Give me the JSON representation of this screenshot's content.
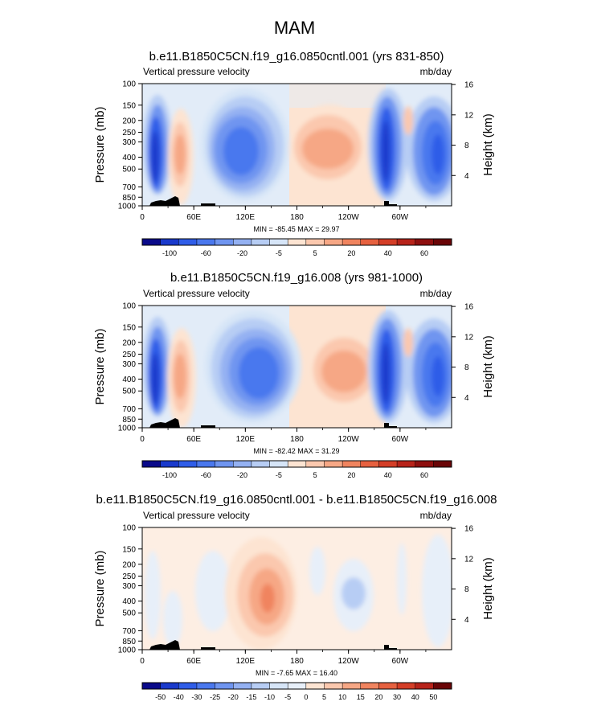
{
  "title": "MAM",
  "panels": [
    {
      "subtitle": "b.e11.B1850C5CN.f19_g16.0850cntl.001 (yrs 831-850)",
      "left_label": "Vertical pressure velocity",
      "right_label": "mb/day",
      "minmax": "MIN = -85.45  MAX = 29.97"
    },
    {
      "subtitle": "b.e11.B1850C5CN.f19_g16.008 (yrs 981-1000)",
      "left_label": "Vertical pressure velocity",
      "right_label": "mb/day",
      "minmax": "MIN = -82.42  MAX = 31.29"
    },
    {
      "subtitle": "b.e11.B1850C5CN.f19_g16.0850cntl.001 - b.e11.B1850C5CN.f19_g16.008",
      "left_label": "Vertical pressure velocity",
      "right_label": "mb/day",
      "minmax": "MIN = -7.65  MAX = 16.40"
    }
  ],
  "chart_data": [
    {
      "type": "contour",
      "title": "b.e11.B1850C5CN.f19_g16.0850cntl.001 (yrs 831-850)",
      "variable": "Vertical pressure velocity",
      "units": "mb/day",
      "ylabel": "Pressure (mb)",
      "y2label": "Height (km)",
      "x_ticks": [
        "0",
        "60E",
        "120E",
        "180",
        "120W",
        "60W"
      ],
      "y_ticks": [
        "100",
        "150",
        "200",
        "250",
        "300",
        "400",
        "500",
        "700",
        "850",
        "1000"
      ],
      "y2_ticks": [
        "16",
        "12",
        "8",
        "4"
      ],
      "min": -85.45,
      "max": 29.97,
      "colorbar_labels": [
        "-100",
        "-60",
        "-20",
        "-5",
        "5",
        "20",
        "40",
        "60"
      ],
      "colorbar_colors": [
        "#0a0a8a",
        "#1a3acc",
        "#2f5de8",
        "#4a78ee",
        "#6f95f0",
        "#94b1f2",
        "#b7cdf4",
        "#d6e5f7",
        "#fde4d2",
        "#fbc8ae",
        "#f6a785",
        "#f0845f",
        "#e66140",
        "#d43e27",
        "#b7231a",
        "#8e0f0f",
        "#6a0507"
      ],
      "features": [
        {
          "lon": 15,
          "p": 400,
          "kind": "ascent",
          "strength": -70
        },
        {
          "lon": 45,
          "p": 400,
          "kind": "descent",
          "strength": 25
        },
        {
          "lon": 130,
          "p": 400,
          "kind": "ascent",
          "strength": -60
        },
        {
          "lon": 200,
          "p": 350,
          "kind": "descent",
          "strength": 25
        },
        {
          "lon": 300,
          "p": 400,
          "kind": "ascent",
          "strength": -85
        },
        {
          "lon": 345,
          "p": 400,
          "kind": "ascent",
          "strength": -60
        }
      ]
    },
    {
      "type": "contour",
      "title": "b.e11.B1850C5CN.f19_g16.008 (yrs 981-1000)",
      "variable": "Vertical pressure velocity",
      "units": "mb/day",
      "ylabel": "Pressure (mb)",
      "y2label": "Height (km)",
      "x_ticks": [
        "0",
        "60E",
        "120E",
        "180",
        "120W",
        "60W"
      ],
      "y_ticks": [
        "100",
        "150",
        "200",
        "250",
        "300",
        "400",
        "500",
        "700",
        "850",
        "1000"
      ],
      "y2_ticks": [
        "16",
        "12",
        "8",
        "4"
      ],
      "min": -82.42,
      "max": 31.29,
      "colorbar_labels": [
        "-100",
        "-60",
        "-20",
        "-5",
        "5",
        "20",
        "40",
        "60"
      ],
      "colorbar_colors": [
        "#0a0a8a",
        "#1a3acc",
        "#2f5de8",
        "#4a78ee",
        "#6f95f0",
        "#94b1f2",
        "#b7cdf4",
        "#d6e5f7",
        "#fde4d2",
        "#fbc8ae",
        "#f6a785",
        "#f0845f",
        "#e66140",
        "#d43e27",
        "#b7231a",
        "#8e0f0f",
        "#6a0507"
      ],
      "features": [
        {
          "lon": 15,
          "p": 400,
          "kind": "ascent",
          "strength": -65
        },
        {
          "lon": 45,
          "p": 400,
          "kind": "descent",
          "strength": 30
        },
        {
          "lon": 135,
          "p": 400,
          "kind": "ascent",
          "strength": -60
        },
        {
          "lon": 235,
          "p": 350,
          "kind": "descent",
          "strength": 25
        },
        {
          "lon": 300,
          "p": 400,
          "kind": "ascent",
          "strength": -82
        },
        {
          "lon": 345,
          "p": 400,
          "kind": "ascent",
          "strength": -60
        }
      ]
    },
    {
      "type": "contour",
      "title": "b.e11.B1850C5CN.f19_g16.0850cntl.001 - b.e11.B1850C5CN.f19_g16.008",
      "variable": "Vertical pressure velocity",
      "units": "mb/day",
      "ylabel": "Pressure (mb)",
      "y2label": "Height (km)",
      "x_ticks": [
        "0",
        "60E",
        "120E",
        "180",
        "120W",
        "60W"
      ],
      "y_ticks": [
        "100",
        "150",
        "200",
        "250",
        "300",
        "400",
        "500",
        "700",
        "850",
        "1000"
      ],
      "y2_ticks": [
        "16",
        "12",
        "8",
        "4"
      ],
      "min": -7.65,
      "max": 16.4,
      "colorbar_labels": [
        "-50",
        "-40",
        "-30",
        "-25",
        "-20",
        "-15",
        "-10",
        "-5",
        "0",
        "5",
        "10",
        "15",
        "20",
        "30",
        "40",
        "50"
      ],
      "colorbar_colors": [
        "#0a0a8a",
        "#1a3acc",
        "#2f5de8",
        "#4a78ee",
        "#6f95f0",
        "#94b1f2",
        "#b7cdf4",
        "#d6e5f7",
        "#e7eff9",
        "#fde4d2",
        "#fbc8ae",
        "#f6a785",
        "#f0845f",
        "#e66140",
        "#d43e27",
        "#b7231a",
        "#6a0507"
      ],
      "features": [
        {
          "lon": 150,
          "p": 400,
          "kind": "descent",
          "strength": 16
        },
        {
          "lon": 230,
          "p": 400,
          "kind": "ascent",
          "strength": -6
        },
        {
          "lon": 90,
          "p": 450,
          "kind": "ascent",
          "strength": -4
        }
      ]
    }
  ]
}
